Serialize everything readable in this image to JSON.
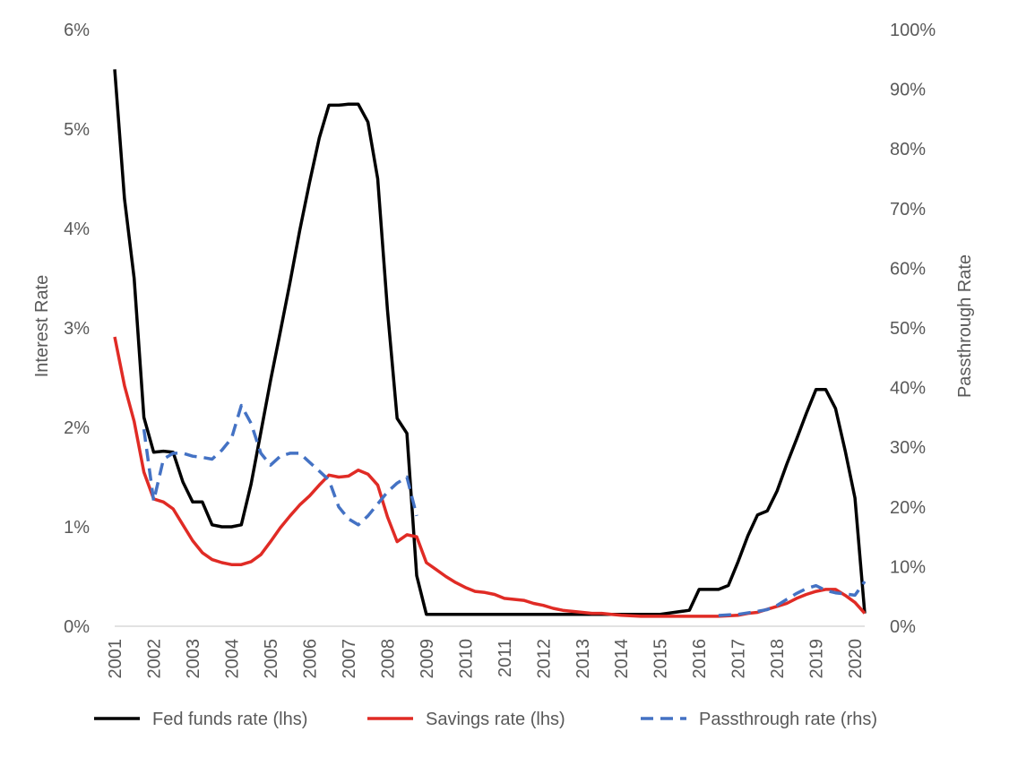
{
  "chart_data": {
    "type": "line",
    "title": "",
    "y_left_label": "Interest Rate",
    "y_right_label": "Passthrough Rate",
    "y_left_ticks": [
      "0%",
      "1%",
      "2%",
      "3%",
      "4%",
      "5%",
      "6%"
    ],
    "y_right_ticks": [
      "0%",
      "10%",
      "20%",
      "30%",
      "40%",
      "50%",
      "60%",
      "70%",
      "80%",
      "90%",
      "100%"
    ],
    "y_left_lim": [
      0,
      6
    ],
    "y_right_lim": [
      0,
      100
    ],
    "x_ticks": [
      "2001",
      "2002",
      "2003",
      "2004",
      "2005",
      "2006",
      "2007",
      "2008",
      "2009",
      "2010",
      "2011",
      "2012",
      "2013",
      "2014",
      "2015",
      "2016",
      "2017",
      "2018",
      "2019",
      "2020"
    ],
    "x_lim": [
      2001,
      2020.25
    ],
    "grid": false,
    "legend_position": "bottom",
    "legend": [
      "Fed funds rate (lhs)",
      "Savings rate (lhs)",
      "Passthrough rate (rhs)"
    ],
    "series": [
      {
        "name": "Fed funds rate (lhs)",
        "axis": "left",
        "color": "#000000",
        "dash": "",
        "points": [
          [
            2001.0,
            5.6
          ],
          [
            2001.25,
            4.3
          ],
          [
            2001.5,
            3.5
          ],
          [
            2001.75,
            2.1
          ],
          [
            2002.0,
            1.75
          ],
          [
            2002.25,
            1.76
          ],
          [
            2002.5,
            1.75
          ],
          [
            2002.75,
            1.45
          ],
          [
            2003.0,
            1.25
          ],
          [
            2003.25,
            1.25
          ],
          [
            2003.5,
            1.02
          ],
          [
            2003.75,
            1.0
          ],
          [
            2004.0,
            1.0
          ],
          [
            2004.25,
            1.02
          ],
          [
            2004.5,
            1.43
          ],
          [
            2004.75,
            1.95
          ],
          [
            2005.0,
            2.47
          ],
          [
            2005.25,
            2.96
          ],
          [
            2005.5,
            3.46
          ],
          [
            2005.75,
            3.98
          ],
          [
            2006.0,
            4.46
          ],
          [
            2006.25,
            4.91
          ],
          [
            2006.5,
            5.24
          ],
          [
            2006.75,
            5.24
          ],
          [
            2007.0,
            5.25
          ],
          [
            2007.25,
            5.25
          ],
          [
            2007.5,
            5.07
          ],
          [
            2007.75,
            4.5
          ],
          [
            2008.0,
            3.18
          ],
          [
            2008.25,
            2.09
          ],
          [
            2008.5,
            1.94
          ],
          [
            2008.75,
            0.51
          ],
          [
            2009.0,
            0.12
          ],
          [
            2009.5,
            0.12
          ],
          [
            2010.0,
            0.12
          ],
          [
            2011.0,
            0.12
          ],
          [
            2012.0,
            0.12
          ],
          [
            2013.0,
            0.12
          ],
          [
            2014.0,
            0.12
          ],
          [
            2015.0,
            0.12
          ],
          [
            2015.75,
            0.16
          ],
          [
            2016.0,
            0.37
          ],
          [
            2016.25,
            0.37
          ],
          [
            2016.5,
            0.37
          ],
          [
            2016.75,
            0.41
          ],
          [
            2017.0,
            0.65
          ],
          [
            2017.25,
            0.91
          ],
          [
            2017.5,
            1.12
          ],
          [
            2017.75,
            1.16
          ],
          [
            2018.0,
            1.36
          ],
          [
            2018.25,
            1.63
          ],
          [
            2018.5,
            1.88
          ],
          [
            2018.75,
            2.14
          ],
          [
            2019.0,
            2.38
          ],
          [
            2019.25,
            2.38
          ],
          [
            2019.5,
            2.19
          ],
          [
            2019.75,
            1.76
          ],
          [
            2020.0,
            1.29
          ],
          [
            2020.25,
            0.13
          ]
        ]
      },
      {
        "name": "Savings rate (lhs)",
        "axis": "left",
        "color": "#e02b25",
        "dash": "",
        "points": [
          [
            2001.0,
            2.91
          ],
          [
            2001.25,
            2.42
          ],
          [
            2001.5,
            2.06
          ],
          [
            2001.75,
            1.55
          ],
          [
            2002.0,
            1.28
          ],
          [
            2002.25,
            1.25
          ],
          [
            2002.5,
            1.18
          ],
          [
            2002.75,
            1.02
          ],
          [
            2003.0,
            0.86
          ],
          [
            2003.25,
            0.74
          ],
          [
            2003.5,
            0.67
          ],
          [
            2003.75,
            0.64
          ],
          [
            2004.0,
            0.62
          ],
          [
            2004.25,
            0.62
          ],
          [
            2004.5,
            0.65
          ],
          [
            2004.75,
            0.72
          ],
          [
            2005.0,
            0.85
          ],
          [
            2005.25,
            0.99
          ],
          [
            2005.5,
            1.11
          ],
          [
            2005.75,
            1.22
          ],
          [
            2006.0,
            1.31
          ],
          [
            2006.25,
            1.42
          ],
          [
            2006.5,
            1.52
          ],
          [
            2006.75,
            1.5
          ],
          [
            2007.0,
            1.51
          ],
          [
            2007.25,
            1.57
          ],
          [
            2007.5,
            1.53
          ],
          [
            2007.75,
            1.42
          ],
          [
            2008.0,
            1.1
          ],
          [
            2008.25,
            0.85
          ],
          [
            2008.5,
            0.92
          ],
          [
            2008.75,
            0.9
          ],
          [
            2009.0,
            0.64
          ],
          [
            2009.25,
            0.57
          ],
          [
            2009.5,
            0.5
          ],
          [
            2009.75,
            0.44
          ],
          [
            2010.0,
            0.39
          ],
          [
            2010.25,
            0.35
          ],
          [
            2010.5,
            0.34
          ],
          [
            2010.75,
            0.32
          ],
          [
            2011.0,
            0.28
          ],
          [
            2011.25,
            0.27
          ],
          [
            2011.5,
            0.26
          ],
          [
            2011.75,
            0.23
          ],
          [
            2012.0,
            0.21
          ],
          [
            2012.25,
            0.18
          ],
          [
            2012.5,
            0.16
          ],
          [
            2012.75,
            0.15
          ],
          [
            2013.0,
            0.14
          ],
          [
            2013.25,
            0.13
          ],
          [
            2013.5,
            0.13
          ],
          [
            2013.75,
            0.12
          ],
          [
            2014.0,
            0.11
          ],
          [
            2014.5,
            0.1
          ],
          [
            2015.0,
            0.1
          ],
          [
            2015.5,
            0.1
          ],
          [
            2016.0,
            0.1
          ],
          [
            2016.5,
            0.1
          ],
          [
            2017.0,
            0.11
          ],
          [
            2017.25,
            0.13
          ],
          [
            2017.5,
            0.14
          ],
          [
            2017.75,
            0.17
          ],
          [
            2018.0,
            0.2
          ],
          [
            2018.25,
            0.23
          ],
          [
            2018.5,
            0.28
          ],
          [
            2018.75,
            0.32
          ],
          [
            2019.0,
            0.35
          ],
          [
            2019.25,
            0.37
          ],
          [
            2019.5,
            0.37
          ],
          [
            2019.75,
            0.31
          ],
          [
            2020.0,
            0.24
          ],
          [
            2020.25,
            0.13
          ]
        ]
      },
      {
        "name": "Passthrough rate (rhs)",
        "axis": "right",
        "color": "#4472c4",
        "dash": "14,8",
        "points": [
          [
            2001.75,
            33
          ],
          [
            2002.0,
            21
          ],
          [
            2002.25,
            28
          ],
          [
            2002.5,
            29
          ],
          [
            2002.75,
            29
          ],
          [
            2003.0,
            28.5
          ],
          [
            2003.25,
            28.3
          ],
          [
            2003.5,
            28
          ],
          [
            2003.75,
            29.5
          ],
          [
            2004.0,
            31.5
          ],
          [
            2004.25,
            37
          ],
          [
            2004.5,
            34
          ],
          [
            2004.75,
            29
          ],
          [
            2005.0,
            27
          ],
          [
            2005.25,
            28.5
          ],
          [
            2005.5,
            29
          ],
          [
            2005.75,
            29
          ],
          [
            2006.0,
            27.5
          ],
          [
            2006.25,
            26
          ],
          [
            2006.5,
            24.5
          ],
          [
            2006.75,
            20
          ],
          [
            2007.0,
            18
          ],
          [
            2007.25,
            17
          ],
          [
            2007.5,
            18.5
          ],
          [
            2007.75,
            20.5
          ],
          [
            2008.0,
            22.5
          ],
          [
            2008.25,
            24
          ],
          [
            2008.5,
            25
          ],
          [
            2008.75,
            18.5
          ],
          [
            2016.5,
            1.8
          ],
          [
            2017.0,
            2
          ],
          [
            2017.5,
            2.5
          ],
          [
            2017.75,
            2.8
          ],
          [
            2018.0,
            3.5
          ],
          [
            2018.25,
            4.5
          ],
          [
            2018.5,
            5.5
          ],
          [
            2018.75,
            6.3
          ],
          [
            2019.0,
            6.8
          ],
          [
            2019.25,
            6
          ],
          [
            2019.5,
            5.6
          ],
          [
            2019.75,
            5.4
          ],
          [
            2020.0,
            5.2
          ],
          [
            2020.25,
            7.5
          ]
        ]
      }
    ]
  }
}
